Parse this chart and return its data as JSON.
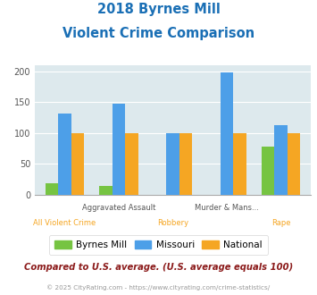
{
  "title_line1": "2018 Byrnes Mill",
  "title_line2": "Violent Crime Comparison",
  "categories": [
    "All Violent Crime",
    "Aggravated Assault",
    "Robbery",
    "Murder & Mans...",
    "Rape"
  ],
  "top_labels": [
    "",
    "Aggravated Assault",
    "",
    "Murder & Mans...",
    ""
  ],
  "bot_labels": [
    "All Violent Crime",
    "",
    "Robbery",
    "",
    "Rape"
  ],
  "byrnes_mill": [
    18,
    14,
    0,
    0,
    78
  ],
  "missouri": [
    131,
    147,
    100,
    198,
    112
  ],
  "national": [
    100,
    100,
    100,
    100,
    100
  ],
  "byrnes_color": "#76C442",
  "missouri_color": "#4D9FE8",
  "national_color": "#F5A623",
  "bg_color": "#DDE9ED",
  "ylim": [
    0,
    210
  ],
  "yticks": [
    0,
    50,
    100,
    150,
    200
  ],
  "title_color": "#1A6FB5",
  "footer1": "Compared to U.S. average. (U.S. average equals 100)",
  "footer2": "© 2025 CityRating.com - https://www.cityrating.com/crime-statistics/",
  "footer1_color": "#8B1A1A",
  "footer2_color": "#999999",
  "label_top_color": "#555555",
  "label_bot_color": "#F5A623"
}
